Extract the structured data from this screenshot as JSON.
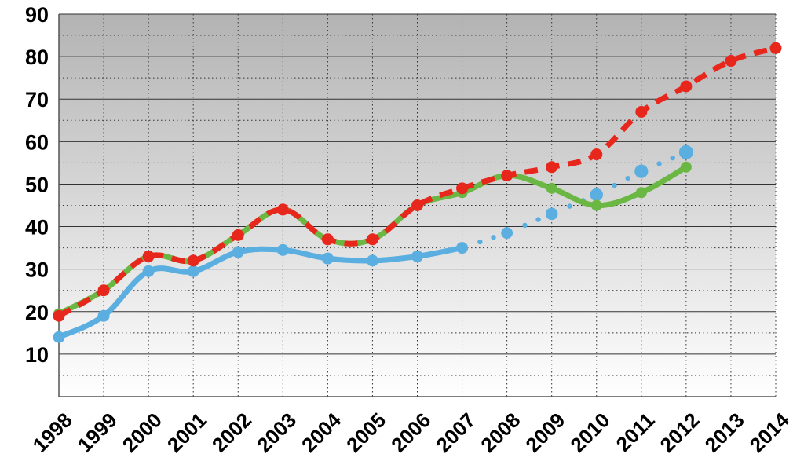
{
  "chart_data": {
    "type": "line",
    "title": "",
    "xlabel": "",
    "ylabel": "",
    "ylim": [
      0,
      90
    ],
    "yticks": [
      10,
      20,
      30,
      40,
      50,
      60,
      70,
      80,
      90
    ],
    "categories": [
      "1998",
      "1999",
      "2000",
      "2001",
      "2002",
      "2003",
      "2004",
      "2005",
      "2006",
      "2007",
      "2008",
      "2009",
      "2010",
      "2011",
      "2012",
      "2013",
      "2014"
    ],
    "grid": true,
    "legend": "none",
    "series": [
      {
        "color": "#6ab743",
        "style": "solid-smooth",
        "values": [
          19.5,
          25,
          33,
          32,
          38,
          44,
          37,
          37,
          45,
          48,
          52,
          49,
          45,
          48,
          54,
          null,
          null
        ]
      },
      {
        "color": "#e8271c",
        "style": "dashed",
        "values": [
          19,
          25,
          33,
          32,
          38,
          44,
          37,
          37,
          45,
          49,
          52,
          54,
          57,
          67,
          73,
          79,
          82
        ]
      },
      {
        "color": "#5aaee0",
        "style": "solid-smooth",
        "values": [
          14,
          19,
          29.5,
          29.5,
          34,
          34.5,
          32.5,
          32,
          33,
          35,
          null,
          null,
          null,
          null,
          null,
          null,
          null
        ]
      },
      {
        "color": "#5aaee0",
        "style": "dotted",
        "values": [
          null,
          null,
          null,
          null,
          null,
          null,
          null,
          null,
          null,
          35,
          38.5,
          43,
          47.5,
          53,
          57.5,
          null,
          null
        ]
      }
    ]
  }
}
